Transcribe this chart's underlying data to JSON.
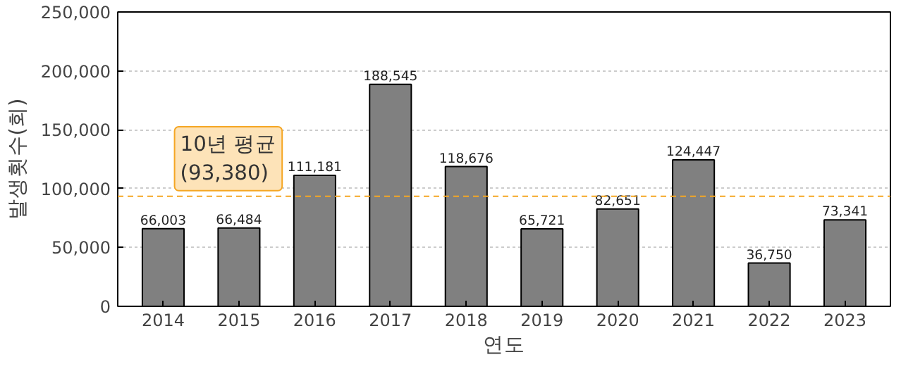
{
  "chart_data": {
    "type": "bar",
    "xlabel": "연도",
    "ylabel": "발생횟수(회)",
    "categories": [
      "2014",
      "2015",
      "2016",
      "2017",
      "2018",
      "2019",
      "2020",
      "2021",
      "2022",
      "2023"
    ],
    "values": [
      66003,
      66484,
      111181,
      188545,
      118676,
      65721,
      82651,
      124447,
      36750,
      73341
    ],
    "color": "#808080",
    "ylim": [
      0,
      250000
    ],
    "yticks": [
      {
        "value": 0,
        "label": "0"
      },
      {
        "value": 50000,
        "label": "50,000"
      },
      {
        "value": 100000,
        "label": "100,000"
      },
      {
        "value": 150000,
        "label": "150,000"
      },
      {
        "value": 200000,
        "label": "200,000"
      },
      {
        "value": 250000,
        "label": "250,000"
      }
    ],
    "grid": "y",
    "value_labels": [
      "66,003",
      "66,484",
      "111,181",
      "188,545",
      "118,676",
      "65,721",
      "82,651",
      "124,447",
      "36,750",
      "73,341"
    ],
    "ref_lines": [
      {
        "axis": "y",
        "value": 93380,
        "label": "10년 평균\n(93,380)",
        "color": "#f5a623",
        "line_style": "dashed"
      }
    ]
  }
}
